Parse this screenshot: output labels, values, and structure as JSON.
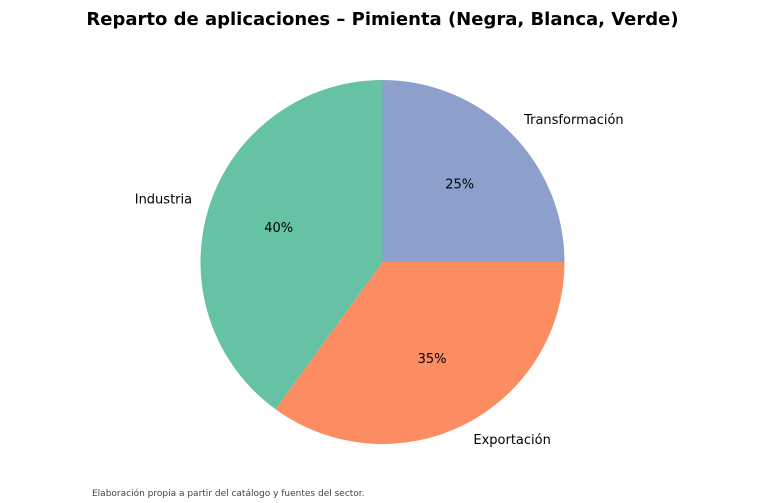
{
  "chart_data": {
    "type": "pie",
    "title": "Reparto de aplicaciones – Pimienta (Negra, Blanca, Verde)",
    "categories": [
      "Transformación",
      "Exportación",
      "Industria"
    ],
    "values": [
      25,
      35,
      40
    ],
    "percent_labels": [
      "25%",
      "35%",
      "40%"
    ],
    "colors": [
      "#8da0cb",
      "#fc8d62",
      "#66c2a5"
    ],
    "start_angle": "top (12 o'clock)",
    "direction": "clockwise",
    "legend": "none"
  },
  "footnote": "Elaboración propia a partir del catálogo y fuentes del sector."
}
